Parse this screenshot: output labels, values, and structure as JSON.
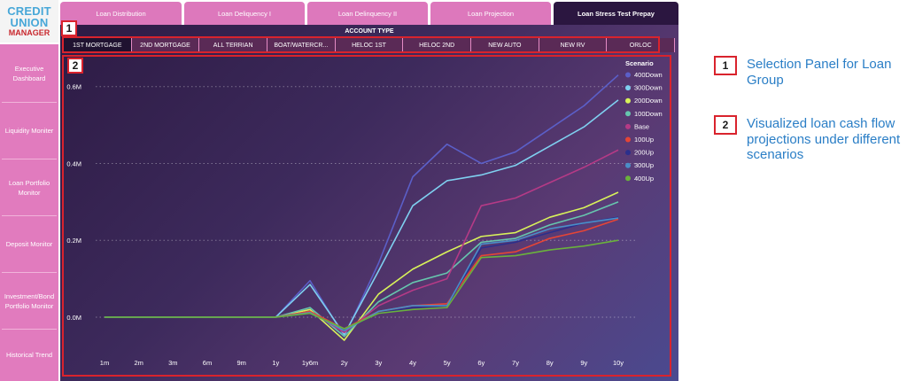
{
  "logo": {
    "line1": "CREDIT",
    "line2": "UNION",
    "line3": "MANAGER"
  },
  "tabs": [
    {
      "label": "Loan Distribution",
      "active": false
    },
    {
      "label": "Loan Deliquency I",
      "active": false
    },
    {
      "label": "Loan Delinquency II",
      "active": false
    },
    {
      "label": "Loan Projection",
      "active": false
    },
    {
      "label": "Loan Stress Test Prepay",
      "active": true
    }
  ],
  "sidebar": {
    "items": [
      {
        "label": "Executive Dashboard"
      },
      {
        "label": "Liquidity Moniter"
      },
      {
        "label": "Loan Portfolio Monitor"
      },
      {
        "label": "Deposit Monitor"
      },
      {
        "label": "Investment/Bond Portfolio Monitor"
      },
      {
        "label": "Historical Trend"
      }
    ]
  },
  "account_type": {
    "title": "ACCOUNT TYPE",
    "options": [
      "1ST MORTGAGE",
      "2ND MORTGAGE",
      "ALL TERRIAN",
      "BOAT/WATERCR...",
      "HELOC 1ST",
      "HELOC 2ND",
      "NEW AUTO",
      "NEW RV",
      "ORLOC"
    ],
    "selected": "1ST MORTGAGE"
  },
  "chart_data": {
    "type": "line",
    "categories": [
      "1m",
      "2m",
      "3m",
      "6m",
      "9m",
      "1y",
      "1y6m",
      "2y",
      "3y",
      "4y",
      "5y",
      "6y",
      "7y",
      "8y",
      "9y",
      "10y"
    ],
    "y_ticks": [
      "0.0M",
      "0.2M",
      "0.4M",
      "0.6M"
    ],
    "ylim": [
      0,
      0.65
    ],
    "legend_title": "Scenario",
    "legend_position": "top-right",
    "grid": true,
    "series": [
      {
        "name": "400Down",
        "color": "#5b5fc8",
        "values": [
          0,
          0,
          0,
          0,
          0,
          0,
          0.095,
          -0.05,
          0.14,
          0.365,
          0.45,
          0.4,
          0.43,
          0.49,
          0.55,
          0.63
        ]
      },
      {
        "name": "300Down",
        "color": "#7fd0f0",
        "values": [
          0,
          0,
          0,
          0,
          0,
          0,
          0.085,
          -0.045,
          0.12,
          0.29,
          0.355,
          0.37,
          0.395,
          0.445,
          0.495,
          0.565
        ]
      },
      {
        "name": "200Down",
        "color": "#d8f25a",
        "values": [
          0,
          0,
          0,
          0,
          0,
          0,
          0.02,
          -0.06,
          0.06,
          0.125,
          0.17,
          0.21,
          0.22,
          0.26,
          0.285,
          0.325
        ]
      },
      {
        "name": "100Down",
        "color": "#66c6ae",
        "values": [
          0,
          0,
          0,
          0,
          0,
          0,
          0.025,
          -0.05,
          0.04,
          0.09,
          0.115,
          0.195,
          0.205,
          0.24,
          0.265,
          0.3
        ]
      },
      {
        "name": "Base",
        "color": "#b53a86",
        "values": [
          0,
          0,
          0,
          0,
          0,
          0,
          0.015,
          -0.04,
          0.03,
          0.07,
          0.1,
          0.29,
          0.31,
          0.35,
          0.39,
          0.435
        ]
      },
      {
        "name": "100Up",
        "color": "#e54536",
        "values": [
          0,
          0,
          0,
          0,
          0,
          0,
          0.015,
          -0.03,
          0.015,
          0.03,
          0.035,
          0.16,
          0.17,
          0.205,
          0.225,
          0.255
        ]
      },
      {
        "name": "200Up",
        "color": "#2b2f8c",
        "values": [
          0,
          0,
          0,
          0,
          0,
          0,
          0.01,
          -0.03,
          0.01,
          0.025,
          0.03,
          0.18,
          0.195,
          0.22,
          0.245,
          0.26
        ]
      },
      {
        "name": "300Up",
        "color": "#4a8ec8",
        "values": [
          0,
          0,
          0,
          0,
          0,
          0,
          0.012,
          -0.035,
          0.015,
          0.03,
          0.03,
          0.19,
          0.2,
          0.23,
          0.245,
          0.258
        ]
      },
      {
        "name": "400Up",
        "color": "#6ab23c",
        "values": [
          0,
          0,
          0,
          0,
          0,
          0,
          0.01,
          -0.03,
          0.01,
          0.02,
          0.025,
          0.155,
          0.16,
          0.175,
          0.185,
          0.2
        ]
      }
    ]
  },
  "annotations": [
    {
      "number": "1",
      "text": "Selection Panel for Loan Group"
    },
    {
      "number": "2",
      "text": "Visualized loan cash flow projections under different scenarios"
    }
  ],
  "colors": {
    "accent_pink": "#e17bbe",
    "active_tab": "#2b1640",
    "callout_red": "#d9232d",
    "annotation_blue": "#2a7ec6"
  }
}
